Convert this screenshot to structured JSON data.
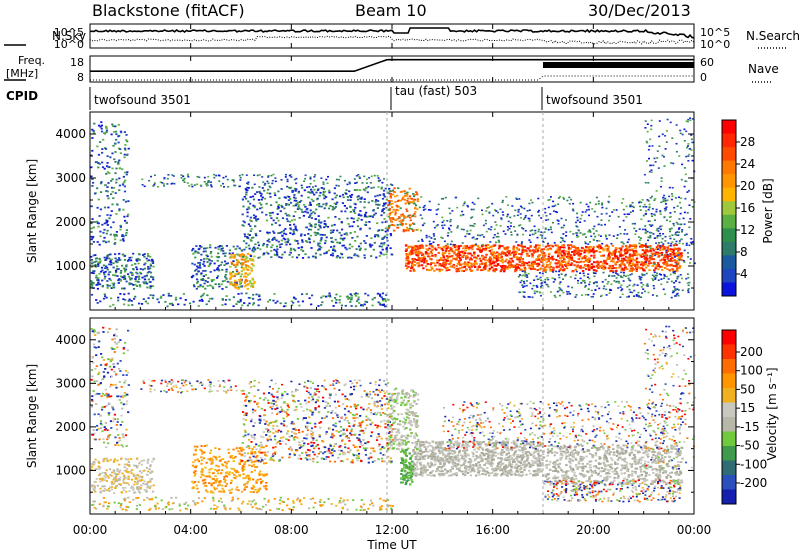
{
  "header": {
    "station": "Blackstone (fitACF)",
    "beam": "Beam 10",
    "date": "30/Dec/2013"
  },
  "left_labels": {
    "nsky": "N.Sky",
    "freq_line1": "Freq.",
    "freq_line2": "[MHz]",
    "cpid": "CPID"
  },
  "right_labels": {
    "nsearch": "N.Search",
    "nave": "Nave"
  },
  "chart_data": [
    {
      "type": "line",
      "panel": "noise",
      "series": [
        {
          "label": "N.Sky",
          "style": "solid"
        },
        {
          "label": "N.Search",
          "style": "dotted"
        }
      ],
      "ytick_labels_left": [
        "10^5",
        "10^0"
      ],
      "ytick_labels_right": [
        "10^5",
        "10^0"
      ]
    },
    {
      "type": "line",
      "panel": "frequency",
      "series": [
        {
          "label": "Freq.",
          "unit": "MHz",
          "style": "solid",
          "segments": [
            [
              0,
              10.5,
              11.8
            ],
            [
              11.8,
              18,
              18
            ],
            [
              18,
              24,
              18
            ]
          ]
        },
        {
          "label": "Nave",
          "style": "dotted"
        }
      ],
      "ytick_labels_left": [
        "18",
        "8"
      ],
      "ytick_labels_right": [
        "60",
        "0"
      ]
    },
    {
      "type": "table",
      "panel": "cpid",
      "segments": [
        {
          "label": "twofsound 3501",
          "start": 0,
          "end": 11.8
        },
        {
          "label": "tau (fast) 503",
          "start": 11.8,
          "end": 18
        },
        {
          "label": "twofsound 3501",
          "start": 18,
          "end": 24
        }
      ]
    },
    {
      "type": "heatmap",
      "panel": "power",
      "ylabel": "Slant Range [km]",
      "ylim": [
        0,
        4500
      ],
      "yticks": [
        1000,
        2000,
        3000,
        4000
      ],
      "colorbar_label": "Power [dB]",
      "colorbar_ticks": [
        4,
        8,
        12,
        16,
        20,
        24,
        28
      ],
      "colorbar_colors": [
        "#0a14dc",
        "#1e46c0",
        "#1a5aa0",
        "#2e7b6a",
        "#2f8f4c",
        "#5bb043",
        "#a0c83c",
        "#ffb400",
        "#ff9600",
        "#ff7800",
        "#ff4a00",
        "#ff2600",
        "#ff0000"
      ]
    },
    {
      "type": "heatmap",
      "panel": "velocity",
      "ylabel": "Slant Range [km]",
      "ylim": [
        0,
        4500
      ],
      "yticks": [
        1000,
        2000,
        3000,
        4000
      ],
      "colorbar_label": "Velocity [m s⁻¹]",
      "colorbar_ticks": [
        "200",
        "100",
        "50",
        "15",
        "-15",
        "-50",
        "-100",
        "-200"
      ],
      "colorbar_colors": [
        "#1520b0",
        "#2b4fbd",
        "#2f6c73",
        "#3f9b4b",
        "#71c93e",
        "#b8b8a8",
        "#c8c8c0",
        "#f0b020",
        "#ff9600",
        "#ff6d00",
        "#ff3300",
        "#ff0000"
      ]
    }
  ],
  "xaxis": {
    "label": "Time UT",
    "ticks": [
      "00:00",
      "04:00",
      "08:00",
      "12:00",
      "16:00",
      "20:00",
      "00:00"
    ]
  }
}
